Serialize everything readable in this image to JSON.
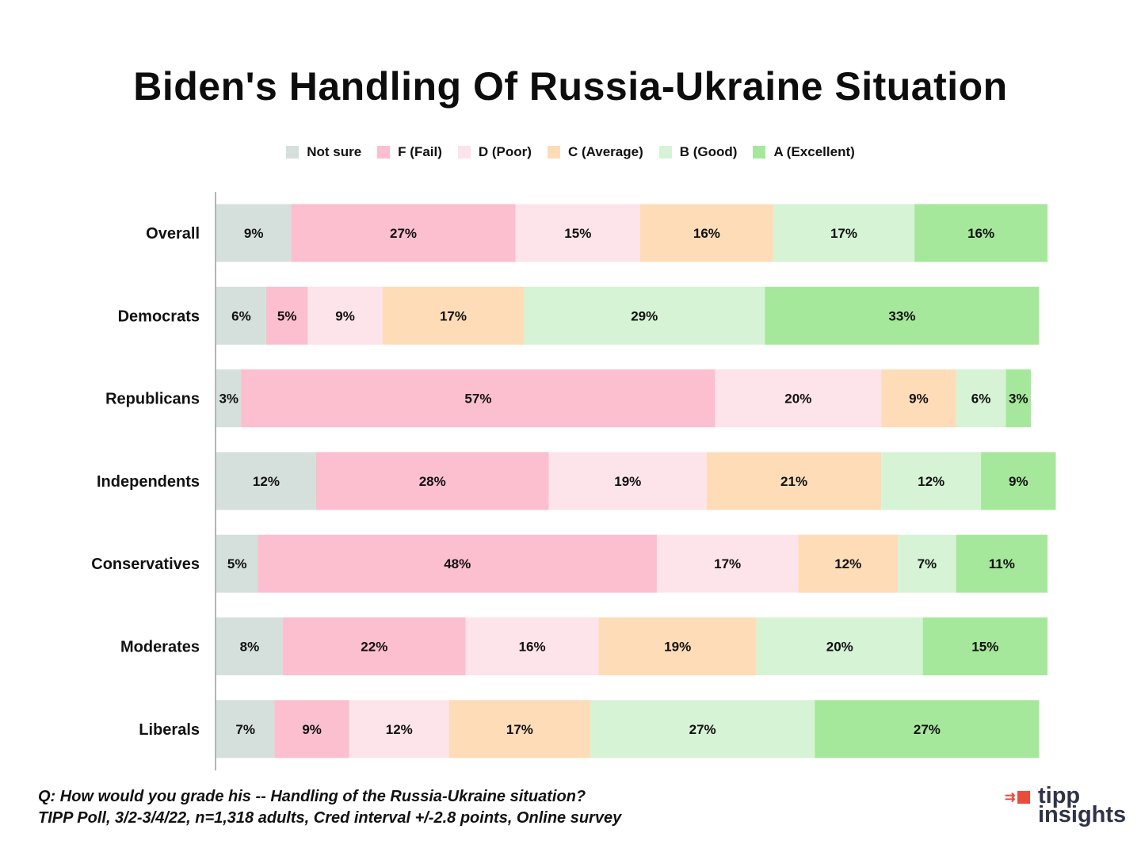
{
  "chart_data": {
    "type": "bar",
    "orientation": "horizontal",
    "stacked": true,
    "title": "Biden's Handling Of Russia-Ukraine Situation",
    "xlabel": "",
    "ylabel": "",
    "legend_position": "top",
    "categories": [
      "Overall",
      "Democrats",
      "Republicans",
      "Independents",
      "Conservatives",
      "Moderates",
      "Liberals"
    ],
    "series": [
      {
        "name": "Not sure",
        "color": "#d5e0dc",
        "values": [
          9,
          6,
          3,
          12,
          5,
          8,
          7
        ]
      },
      {
        "name": "F (Fail)",
        "color": "#fcbfcf",
        "values": [
          27,
          5,
          57,
          28,
          48,
          22,
          9
        ]
      },
      {
        "name": "D (Poor)",
        "color": "#fde3ea",
        "values": [
          15,
          9,
          20,
          19,
          17,
          16,
          12
        ]
      },
      {
        "name": "C (Average)",
        "color": "#fedcb8",
        "values": [
          16,
          17,
          9,
          21,
          12,
          19,
          17
        ]
      },
      {
        "name": "B (Good)",
        "color": "#d6f3d5",
        "values": [
          17,
          29,
          6,
          12,
          7,
          20,
          27
        ]
      },
      {
        "name": "A (Excellent)",
        "color": "#a6e89b",
        "values": [
          16,
          33,
          3,
          9,
          11,
          15,
          27
        ]
      }
    ],
    "value_suffix": "%",
    "grid": false
  },
  "footer": {
    "question": "Q:  How would you grade his -- Handling of the Russia-Ukraine situation?",
    "source": "TIPP Poll, 3/2-3/4/22, n=1,318 adults, Cred interval +/-2.8 points, Online survey"
  },
  "logo": {
    "line1": "tipp",
    "line2": "insights"
  }
}
